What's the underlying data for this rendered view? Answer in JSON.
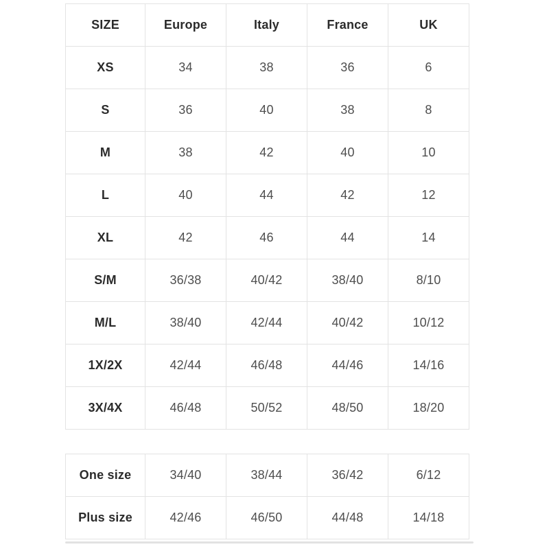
{
  "colors": {
    "background": "#ffffff",
    "border": "#e3e3e3",
    "label_text": "#2b2b2b",
    "value_text": "#4e4e4e",
    "scrollbar": "#e2e2e2"
  },
  "chart_data": [
    {
      "type": "table",
      "columns": [
        "SIZE",
        "Europe",
        "Italy",
        "France",
        "UK"
      ],
      "rows": [
        [
          "XS",
          "34",
          "38",
          "36",
          "6"
        ],
        [
          "S",
          "36",
          "40",
          "38",
          "8"
        ],
        [
          "M",
          "38",
          "42",
          "40",
          "10"
        ],
        [
          "L",
          "40",
          "44",
          "42",
          "12"
        ],
        [
          "XL",
          "42",
          "46",
          "44",
          "14"
        ],
        [
          "S/M",
          "36/38",
          "40/42",
          "38/40",
          "8/10"
        ],
        [
          "M/L",
          "38/40",
          "42/44",
          "40/42",
          "10/12"
        ],
        [
          "1X/2X",
          "42/44",
          "46/48",
          "44/46",
          "14/16"
        ],
        [
          "3X/4X",
          "46/48",
          "50/52",
          "48/50",
          "18/20"
        ]
      ]
    },
    {
      "type": "table",
      "columns": [],
      "rows": [
        [
          "One size",
          "34/40",
          "38/44",
          "36/42",
          "6/12"
        ],
        [
          "Plus size",
          "42/46",
          "46/50",
          "44/48",
          "14/18"
        ]
      ]
    }
  ]
}
